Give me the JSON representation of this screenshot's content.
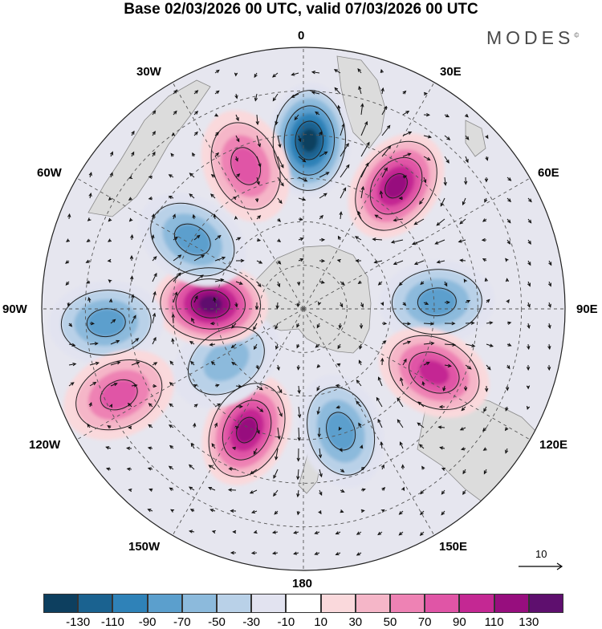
{
  "title": "Base 02/03/2026 00 UTC, valid 07/03/2026 00 UTC",
  "brand": "MODES",
  "brand_mark": "©",
  "longitude_labels": {
    "lon_0": "0",
    "lon_30e": "30E",
    "lon_60e": "60E",
    "lon_90e": "90E",
    "lon_120e": "120E",
    "lon_150e": "150E",
    "lon_180": "180",
    "lon_150w": "150W",
    "lon_120w": "120W",
    "lon_90w": "90W",
    "lon_60w": "60W",
    "lon_30w": "30W"
  },
  "vector_scale_label": "10",
  "colorbar": {
    "colors": [
      "#0d3f5f",
      "#1a6290",
      "#2f82b8",
      "#5b9fcd",
      "#8cbadc",
      "#b9d1e8",
      "#e2e3f0",
      "#ffffff",
      "#fad9dc",
      "#f5b6c8",
      "#ee82b4",
      "#e055a6",
      "#c42893",
      "#970e7e",
      "#5e0f6e"
    ],
    "ticks": [
      "-130",
      "-110",
      "-90",
      "-70",
      "-50",
      "-30",
      "-10",
      "10",
      "30",
      "50",
      "70",
      "90",
      "110",
      "130"
    ]
  },
  "anomaly_centers": [
    {
      "lon_deg": 2,
      "lat_deg": -32,
      "value": -130
    },
    {
      "lon_deg": 37,
      "lat_deg": -37,
      "value": 110
    },
    {
      "lon_deg": 87,
      "lat_deg": -44,
      "value": -70
    },
    {
      "lon_deg": 116,
      "lat_deg": -40,
      "value": 90
    },
    {
      "lon_deg": 163,
      "lat_deg": -46,
      "value": -70
    },
    {
      "lon_deg": -155,
      "lat_deg": -44,
      "value": 110
    },
    {
      "lon_deg": -124,
      "lat_deg": -58,
      "value": -50
    },
    {
      "lon_deg": -87,
      "lat_deg": -58,
      "value": 130
    },
    {
      "lon_deg": -58,
      "lat_deg": -45,
      "value": -70
    },
    {
      "lon_deg": -22,
      "lat_deg": -37,
      "value": 70
    },
    {
      "lon_deg": -94,
      "lat_deg": -22,
      "value": -70
    },
    {
      "lon_deg": -115,
      "lat_deg": -20,
      "value": 70
    }
  ]
}
